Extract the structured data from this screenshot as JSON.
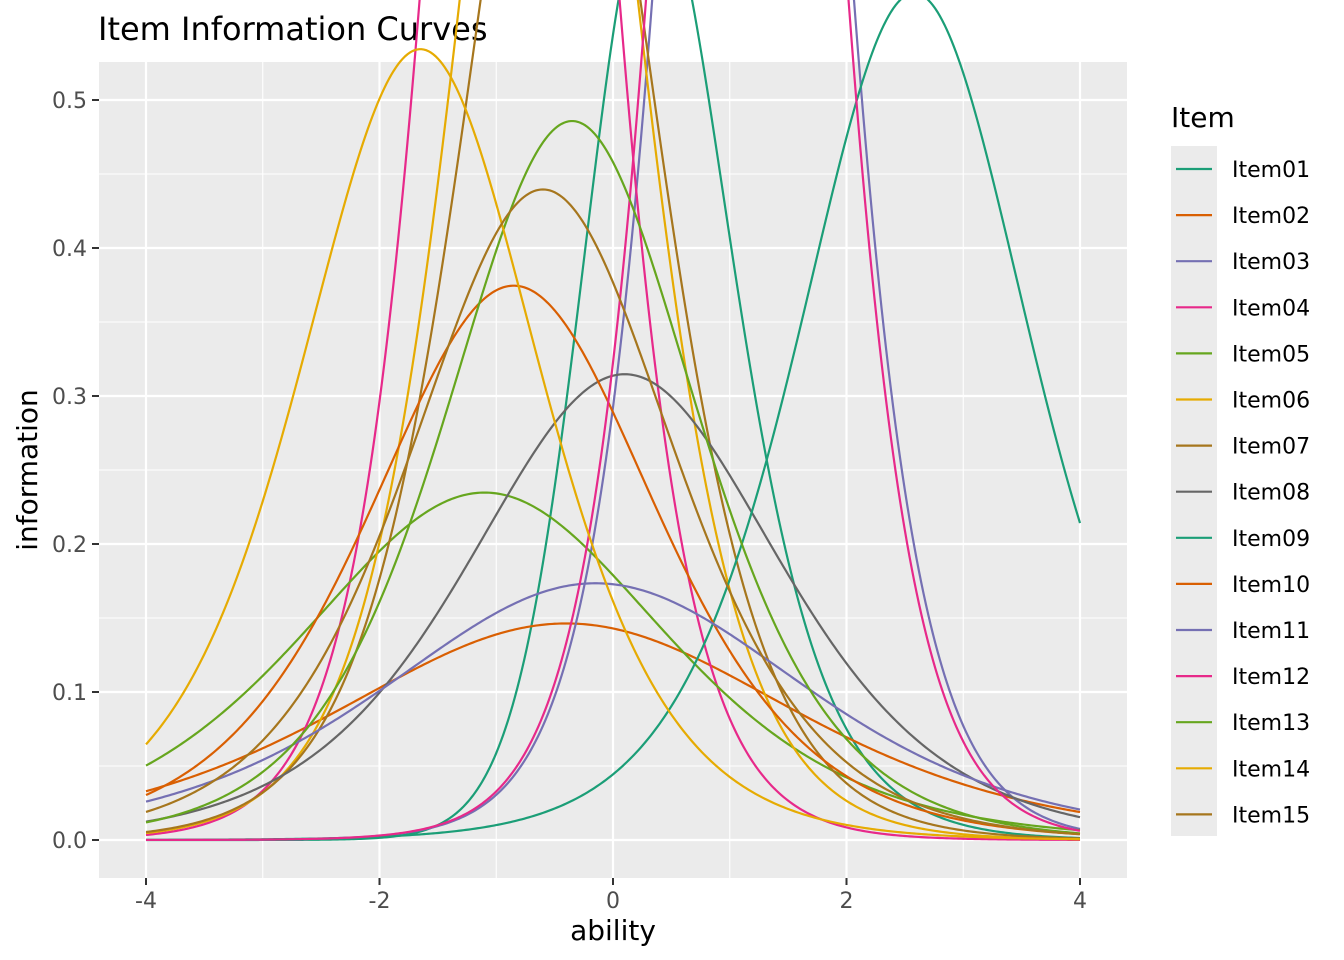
{
  "chart_data": {
    "type": "line",
    "title": "Item Information Curves",
    "xlabel": "ability",
    "ylabel": "information",
    "xlim": [
      -4,
      4
    ],
    "ylim": [
      0,
      0.5
    ],
    "x_ticks": [
      -4,
      -2,
      0,
      2,
      4
    ],
    "x_tick_labels": [
      "-4",
      "-2",
      "0",
      "2",
      "4"
    ],
    "y_ticks": [
      0,
      0.1,
      0.2,
      0.3,
      0.4,
      0.5
    ],
    "y_tick_labels": [
      "0.0",
      "0.1",
      "0.2",
      "0.3",
      "0.4",
      "0.5"
    ],
    "grid": true,
    "panel_background": "#ebebeb",
    "legend": {
      "title": "Item",
      "position": "right"
    },
    "series": [
      {
        "name": "Item01",
        "color": "#1b9e77",
        "a": 1.2,
        "b": 0.2,
        "c": 0.25
      },
      {
        "name": "Item02",
        "color": "#d95f02",
        "a": 0.45,
        "b": -0.4,
        "c": 0.0
      },
      {
        "name": "Item03",
        "color": "#7570b3",
        "a": 1.39,
        "b": 1.2,
        "c": 0.0
      },
      {
        "name": "Item04",
        "color": "#e7298a",
        "a": 1.35,
        "b": -0.8,
        "c": 0.0
      },
      {
        "name": "Item05",
        "color": "#66a61e",
        "a": 0.57,
        "b": -1.1,
        "c": 0.0
      },
      {
        "name": "Item06",
        "color": "#e6ab02",
        "a": 1.14,
        "b": -0.55,
        "c": 0.0
      },
      {
        "name": "Item07",
        "color": "#a6761d",
        "a": 1.06,
        "b": -0.45,
        "c": 0.0
      },
      {
        "name": "Item08",
        "color": "#666666",
        "a": 0.66,
        "b": 0.1,
        "c": 0.0
      },
      {
        "name": "Item09",
        "color": "#1b9e77",
        "a": 0.89,
        "b": 2.58,
        "c": 0.0
      },
      {
        "name": "Item10",
        "color": "#d95f02",
        "a": 0.72,
        "b": -0.85,
        "c": 0.0
      },
      {
        "name": "Item11",
        "color": "#7570b3",
        "a": 0.49,
        "b": -0.15,
        "c": 0.0
      },
      {
        "name": "Item12",
        "color": "#e7298a",
        "a": 1.41,
        "b": 1.15,
        "c": 0.0
      },
      {
        "name": "Item13",
        "color": "#66a61e",
        "a": 0.82,
        "b": -0.35,
        "c": 0.0
      },
      {
        "name": "Item14",
        "color": "#e6ab02",
        "a": 0.86,
        "b": -1.65,
        "c": 0.0
      },
      {
        "name": "Item15",
        "color": "#a6761d",
        "a": 0.78,
        "b": -0.6,
        "c": 0.0
      }
    ]
  }
}
